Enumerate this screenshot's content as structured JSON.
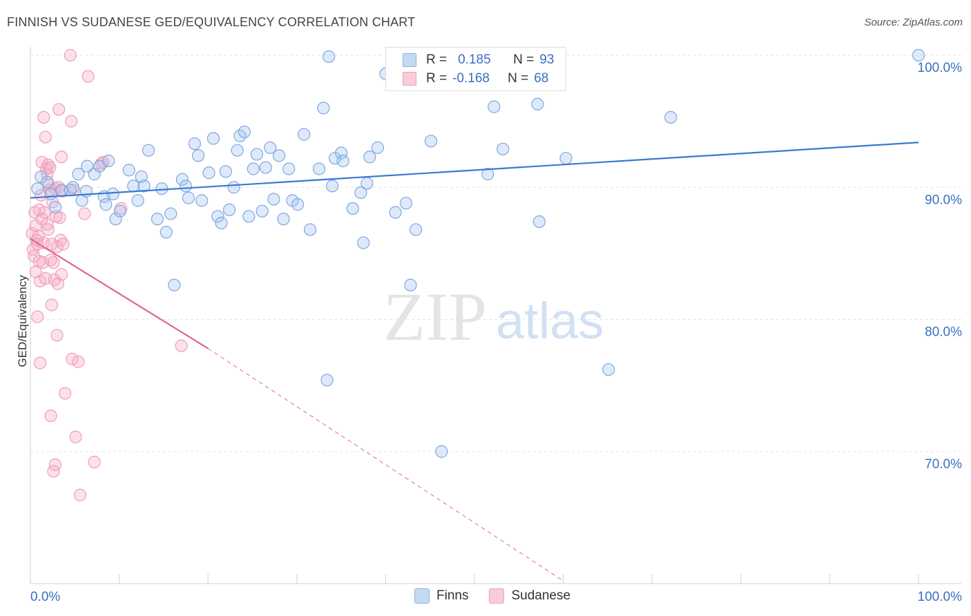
{
  "header": {
    "title": "FINNISH VS SUDANESE GED/EQUIVALENCY CORRELATION CHART",
    "source": "Source: ZipAtlas.com"
  },
  "watermark": {
    "zip": "ZIP",
    "atlas": "atlas"
  },
  "legend": {
    "rows": [
      {
        "r_label": "R =",
        "r_value": "0.185",
        "n_label": "N =",
        "n_value": "93",
        "color": "#a9c6ef"
      },
      {
        "r_label": "R =",
        "r_value": "-0.168",
        "n_label": "N =",
        "n_value": "68",
        "color": "#f5b3c6"
      }
    ]
  },
  "bottom_legend": {
    "finns": "Finns",
    "sudanese": "Sudanese"
  },
  "chart_data": {
    "type": "scatter",
    "title": "FINNISH VS SUDANESE GED/EQUIVALENCY CORRELATION CHART",
    "ylabel": "GED/Equivalency",
    "xlabel": "",
    "xlim": [
      0,
      100
    ],
    "ylim": [
      60,
      100
    ],
    "x_tick_labels": [
      "0.0%",
      "100.0%"
    ],
    "y_tick_labels": [
      "100.0%",
      "90.0%",
      "80.0%",
      "70.0%"
    ],
    "y_ticks": [
      100,
      90,
      80,
      70
    ],
    "grid": true,
    "colors": {
      "finns": "#3a78d4",
      "sudanese": "#e0668f"
    },
    "series": [
      {
        "name": "Finns",
        "trend": {
          "x": [
            0,
            100
          ],
          "y": [
            89.2,
            93.4
          ]
        },
        "points": [
          [
            0.8,
            89.9
          ],
          [
            1.2,
            90.8
          ],
          [
            1.9,
            90.4
          ],
          [
            2.3,
            89.5
          ],
          [
            2.8,
            88.5
          ],
          [
            3.5,
            89.8
          ],
          [
            4.5,
            89.8
          ],
          [
            4.8,
            90.0
          ],
          [
            5.8,
            89.0
          ],
          [
            5.4,
            91.0
          ],
          [
            6.3,
            89.7
          ],
          [
            6.4,
            91.6
          ],
          [
            7.2,
            91.0
          ],
          [
            7.8,
            91.6
          ],
          [
            8.3,
            89.3
          ],
          [
            8.5,
            88.7
          ],
          [
            8.8,
            92.0
          ],
          [
            9.3,
            89.5
          ],
          [
            9.6,
            87.6
          ],
          [
            10.1,
            88.2
          ],
          [
            11.1,
            91.3
          ],
          [
            11.6,
            90.1
          ],
          [
            12.1,
            89.0
          ],
          [
            12.5,
            90.8
          ],
          [
            12.8,
            90.1
          ],
          [
            13.3,
            92.8
          ],
          [
            14.3,
            87.6
          ],
          [
            14.8,
            89.9
          ],
          [
            15.3,
            86.6
          ],
          [
            15.8,
            88.0
          ],
          [
            16.2,
            82.6
          ],
          [
            17.1,
            90.6
          ],
          [
            17.5,
            90.1
          ],
          [
            17.8,
            89.2
          ],
          [
            18.5,
            93.3
          ],
          [
            18.9,
            92.4
          ],
          [
            19.3,
            89.0
          ],
          [
            20.1,
            91.1
          ],
          [
            20.6,
            93.7
          ],
          [
            21.1,
            87.8
          ],
          [
            21.5,
            87.3
          ],
          [
            22.0,
            91.2
          ],
          [
            22.4,
            88.3
          ],
          [
            22.9,
            90.0
          ],
          [
            23.3,
            92.8
          ],
          [
            23.6,
            93.9
          ],
          [
            24.1,
            94.2
          ],
          [
            24.6,
            87.8
          ],
          [
            25.1,
            91.4
          ],
          [
            25.5,
            92.5
          ],
          [
            26.1,
            88.2
          ],
          [
            26.5,
            91.5
          ],
          [
            27.0,
            93.0
          ],
          [
            27.4,
            89.1
          ],
          [
            28.0,
            92.4
          ],
          [
            28.5,
            87.6
          ],
          [
            29.1,
            91.4
          ],
          [
            29.5,
            89.0
          ],
          [
            30.1,
            88.7
          ],
          [
            30.8,
            94.0
          ],
          [
            31.5,
            86.8
          ],
          [
            32.5,
            91.4
          ],
          [
            33.0,
            96.0
          ],
          [
            34.0,
            90.1
          ],
          [
            34.3,
            92.2
          ],
          [
            35.0,
            92.6
          ],
          [
            35.2,
            92.0
          ],
          [
            36.3,
            88.4
          ],
          [
            37.2,
            89.6
          ],
          [
            37.5,
            85.8
          ],
          [
            37.9,
            90.3
          ],
          [
            38.2,
            92.3
          ],
          [
            39.1,
            93.0
          ],
          [
            40.0,
            98.6
          ],
          [
            41.1,
            88.1
          ],
          [
            42.3,
            88.8
          ],
          [
            42.8,
            82.6
          ],
          [
            43.4,
            86.8
          ],
          [
            45.1,
            93.5
          ],
          [
            46.3,
            70.0
          ],
          [
            33.4,
            75.4
          ],
          [
            51.5,
            91.0
          ],
          [
            52.2,
            96.1
          ],
          [
            53.2,
            92.9
          ],
          [
            55.4,
            100.0
          ],
          [
            57.1,
            96.3
          ],
          [
            57.3,
            87.4
          ],
          [
            59.1,
            100.0
          ],
          [
            60.3,
            92.2
          ],
          [
            65.1,
            76.2
          ],
          [
            72.1,
            95.3
          ],
          [
            100.0,
            100.0
          ],
          [
            33.6,
            99.9
          ]
        ]
      },
      {
        "name": "Sudanese",
        "trend": {
          "x": [
            0,
            20
          ],
          "y": [
            86.1,
            77.8
          ]
        },
        "dashed_extension": {
          "x": [
            20,
            60
          ],
          "y": [
            77.8,
            60.2
          ]
        },
        "points": [
          [
            0.2,
            86.5
          ],
          [
            0.3,
            85.3
          ],
          [
            0.4,
            84.8
          ],
          [
            0.5,
            88.1
          ],
          [
            0.6,
            87.1
          ],
          [
            0.7,
            86.0
          ],
          [
            0.8,
            85.7
          ],
          [
            0.9,
            86.3
          ],
          [
            1.0,
            84.4
          ],
          [
            1.1,
            82.9
          ],
          [
            1.2,
            89.4
          ],
          [
            1.3,
            87.6
          ],
          [
            1.4,
            84.3
          ],
          [
            1.5,
            85.8
          ],
          [
            1.6,
            88.1
          ],
          [
            1.7,
            83.1
          ],
          [
            1.8,
            91.4
          ],
          [
            1.9,
            91.0
          ],
          [
            2.0,
            86.8
          ],
          [
            2.1,
            90.2
          ],
          [
            2.2,
            89.8
          ],
          [
            2.3,
            84.5
          ],
          [
            2.4,
            81.1
          ],
          [
            2.5,
            88.9
          ],
          [
            2.6,
            84.3
          ],
          [
            2.7,
            83.0
          ],
          [
            2.8,
            89.9
          ],
          [
            2.9,
            87.8
          ],
          [
            3.0,
            85.5
          ],
          [
            3.1,
            82.7
          ],
          [
            3.2,
            90.0
          ],
          [
            3.3,
            87.7
          ],
          [
            3.4,
            86.0
          ],
          [
            3.5,
            83.4
          ],
          [
            3.6,
            89.7
          ],
          [
            3.7,
            85.7
          ],
          [
            0.6,
            83.6
          ],
          [
            0.8,
            80.2
          ],
          [
            1.1,
            76.7
          ],
          [
            1.3,
            91.9
          ],
          [
            1.5,
            95.3
          ],
          [
            1.7,
            93.8
          ],
          [
            2.0,
            91.7
          ],
          [
            2.2,
            91.5
          ],
          [
            2.3,
            72.7
          ],
          [
            2.6,
            68.5
          ],
          [
            2.8,
            69.0
          ],
          [
            3.0,
            78.8
          ],
          [
            3.2,
            95.9
          ],
          [
            3.5,
            92.3
          ],
          [
            3.9,
            74.4
          ],
          [
            4.5,
            100.0
          ],
          [
            4.6,
            95.0
          ],
          [
            4.7,
            77.0
          ],
          [
            4.9,
            89.8
          ],
          [
            5.1,
            71.1
          ],
          [
            5.4,
            76.8
          ],
          [
            5.6,
            66.7
          ],
          [
            6.1,
            88.0
          ],
          [
            6.5,
            98.4
          ],
          [
            7.2,
            69.2
          ],
          [
            8.0,
            91.8
          ],
          [
            8.2,
            91.9
          ],
          [
            10.2,
            88.4
          ],
          [
            17.0,
            78.0
          ],
          [
            1.0,
            88.3
          ],
          [
            1.9,
            87.2
          ],
          [
            2.4,
            85.7
          ]
        ]
      }
    ]
  }
}
